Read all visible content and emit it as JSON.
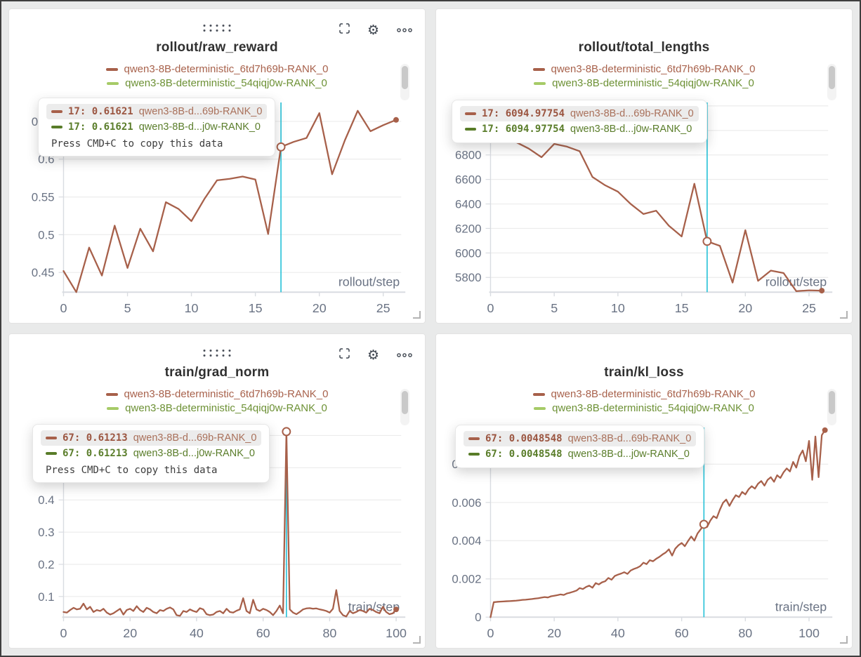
{
  "legend": {
    "series": [
      {
        "label": "qwen3-8B-deterministic_6td7h69b-RANK_0",
        "color": "#a7604a"
      },
      {
        "label": "qwen3-8B-deterministic_54qiqj0w-RANK_0",
        "color": "#a6cb67"
      }
    ]
  },
  "colors": {
    "line": "#a7604a",
    "green_light": "#a6cb67",
    "green_dark": "#587c28",
    "crosshair": "#2fc4d9",
    "axis_text": "#6a7384",
    "grid": "#ececec",
    "axis_line": "#d9dce1",
    "title": "#303030"
  },
  "chart_data": [
    {
      "type": "line",
      "title": "rollout/raw_reward",
      "xlabel": "rollout/step",
      "x_start": 0,
      "x_step": 1,
      "values": [
        0.452,
        0.424,
        0.483,
        0.446,
        0.512,
        0.456,
        0.508,
        0.478,
        0.543,
        0.534,
        0.518,
        0.547,
        0.572,
        0.574,
        0.577,
        0.573,
        0.501,
        0.61621,
        0.623,
        0.628,
        0.661,
        0.58,
        0.625,
        0.664,
        0.637,
        0.645,
        0.652
      ],
      "xlim": [
        0,
        26.4
      ],
      "ylim": [
        0.424,
        0.675
      ],
      "xticks": [
        0,
        5,
        10,
        15,
        20,
        25
      ],
      "xlabels": [
        "0",
        "5",
        "10",
        "15",
        "20",
        "25"
      ],
      "yticks": [
        0.45,
        0.5,
        0.55,
        0.6,
        0.65
      ],
      "ylabels": [
        "0.45",
        "0.5",
        "0.55",
        "0.6",
        "0.65"
      ],
      "crosshair_x": 17,
      "marker": {
        "x": 17,
        "y": 0.61621
      },
      "end_dot": true,
      "tooltip": {
        "rows": [
          {
            "num": "17: 0.61621",
            "run": "qwen3-8B-d...69b-RANK_0"
          },
          {
            "num": "17: 0.61621",
            "run": "qwen3-8B-d...j0w-RANK_0"
          }
        ],
        "footer": "Press CMD+C to copy this data"
      }
    },
    {
      "type": "line",
      "title": "rollout/total_lengths",
      "xlabel": "rollout/step",
      "x_start": 0,
      "x_step": 1,
      "values": [
        7150,
        7015,
        6905,
        6852,
        6781,
        6890,
        6868,
        6830,
        6620,
        6552,
        6500,
        6400,
        6318,
        6345,
        6222,
        6135,
        6565,
        6094.97754,
        6058,
        5758,
        6186,
        5772,
        5856,
        5836,
        5688,
        5695,
        5692
      ],
      "xlim": [
        0,
        26.5
      ],
      "ylim": [
        5680,
        7228
      ],
      "xticks": [
        0,
        5,
        10,
        15,
        20,
        25
      ],
      "xlabels": [
        "0",
        "5",
        "10",
        "15",
        "20",
        "25"
      ],
      "yticks": [
        5800,
        6000,
        6200,
        6400,
        6600,
        6800,
        7000,
        7200
      ],
      "ylabels": [
        "5800",
        "6000",
        "6200",
        "6400",
        "6600",
        "6800",
        "7000",
        "7200"
      ],
      "crosshair_x": 17,
      "marker": {
        "x": 17,
        "y": 6094.97754
      },
      "end_dot": true,
      "tooltip": {
        "rows": [
          {
            "num": "17: 6094.97754",
            "run": "qwen3-8B-d...69b-RANK_0"
          },
          {
            "num": "17: 6094.97754",
            "run": "qwen3-8B-d...j0w-RANK_0"
          }
        ],
        "footer": null
      }
    },
    {
      "type": "line",
      "title": "train/grad_norm",
      "xlabel": "train/step",
      "x_start": 0,
      "x_step": 1,
      "values": [
        0.052,
        0.05,
        0.058,
        0.065,
        0.06,
        0.062,
        0.078,
        0.06,
        0.068,
        0.052,
        0.058,
        0.055,
        0.062,
        0.05,
        0.044,
        0.048,
        0.055,
        0.062,
        0.044,
        0.058,
        0.062,
        0.055,
        0.07,
        0.058,
        0.052,
        0.065,
        0.06,
        0.052,
        0.048,
        0.058,
        0.055,
        0.062,
        0.066,
        0.06,
        0.042,
        0.04,
        0.055,
        0.052,
        0.06,
        0.055,
        0.052,
        0.064,
        0.06,
        0.045,
        0.042,
        0.044,
        0.052,
        0.055,
        0.048,
        0.062,
        0.052,
        0.05,
        0.056,
        0.06,
        0.095,
        0.055,
        0.048,
        0.09,
        0.06,
        0.055,
        0.062,
        0.058,
        0.052,
        0.042,
        0.055,
        0.072,
        0.048,
        0.61213,
        0.06,
        0.05,
        0.045,
        0.052,
        0.06,
        0.063,
        0.064,
        0.062,
        0.063,
        0.06,
        0.058,
        0.055,
        0.05,
        0.062,
        0.12,
        0.055,
        0.042,
        0.038,
        0.055,
        0.048,
        0.052,
        0.058,
        0.055,
        0.05,
        0.062,
        0.058,
        0.052,
        0.048,
        0.068,
        0.052,
        0.045,
        0.048,
        0.06
      ],
      "xlim": [
        0,
        101.5
      ],
      "ylim": [
        0.036,
        0.625
      ],
      "xticks": [
        0,
        20,
        40,
        60,
        80,
        100
      ],
      "xlabels": [
        "0",
        "20",
        "40",
        "60",
        "80",
        "100"
      ],
      "yticks": [
        0.1,
        0.2,
        0.3,
        0.4,
        0.5,
        0.6
      ],
      "ylabels": [
        "0.1",
        "0.2",
        "0.3",
        "0.4",
        "0.5",
        "0.6"
      ],
      "crosshair_x": 67,
      "marker": {
        "x": 67,
        "y": 0.61213
      },
      "end_dot": true,
      "tooltip": {
        "rows": [
          {
            "num": "67: 0.61213",
            "run": "qwen3-8B-d...69b-RANK_0"
          },
          {
            "num": "67: 0.61213",
            "run": "qwen3-8B-d...j0w-RANK_0"
          }
        ],
        "footer": "Press CMD+C to copy this data"
      }
    },
    {
      "type": "line",
      "title": "train/kl_loss",
      "xlabel": "train/step",
      "x_start": 0,
      "x_step": 1,
      "values": [
        0,
        0.00078,
        0.0008,
        0.00081,
        0.00082,
        0.00083,
        0.00084,
        0.00085,
        0.00086,
        0.00088,
        0.0009,
        0.00091,
        0.00093,
        0.00095,
        0.00097,
        0.00099,
        0.00102,
        0.00105,
        0.00103,
        0.00109,
        0.00112,
        0.00115,
        0.00119,
        0.00116,
        0.00124,
        0.00128,
        0.00133,
        0.00139,
        0.00152,
        0.00147,
        0.00158,
        0.00165,
        0.00154,
        0.00178,
        0.00171,
        0.00182,
        0.00188,
        0.00205,
        0.00196,
        0.00215,
        0.00222,
        0.00228,
        0.00235,
        0.00226,
        0.00244,
        0.00252,
        0.00258,
        0.00267,
        0.00285,
        0.00277,
        0.00298,
        0.00292,
        0.00305,
        0.00315,
        0.00328,
        0.00338,
        0.00355,
        0.00322,
        0.00358,
        0.00376,
        0.00388,
        0.00371,
        0.00398,
        0.00422,
        0.004,
        0.00438,
        0.0046,
        0.0048548,
        0.00472,
        0.00505,
        0.00528,
        0.00518,
        0.00562,
        0.00598,
        0.00615,
        0.00582,
        0.00612,
        0.00638,
        0.00628,
        0.00655,
        0.00642,
        0.00668,
        0.00685,
        0.00672,
        0.00698,
        0.00712,
        0.00688,
        0.00718,
        0.00732,
        0.00708,
        0.00742,
        0.00728,
        0.00758,
        0.00778,
        0.00762,
        0.00812,
        0.00782,
        0.00842,
        0.00872,
        0.00815,
        0.00922,
        0.00718,
        0.00945,
        0.00732,
        0.00952,
        0.00978
      ],
      "xlim": [
        0,
        106
      ],
      "ylim": [
        0,
        0.00992
      ],
      "xticks": [
        0,
        20,
        40,
        60,
        80,
        100
      ],
      "xlabels": [
        "0",
        "20",
        "40",
        "60",
        "80",
        "100"
      ],
      "yticks": [
        0,
        0.002,
        0.004,
        0.006,
        0.008
      ],
      "ylabels": [
        "0",
        "0.002",
        "0.004",
        "0.006",
        "0.008"
      ],
      "crosshair_x": 67,
      "marker": {
        "x": 67,
        "y": 0.0048548
      },
      "end_dot": true,
      "tooltip": {
        "rows": [
          {
            "num": "67: 0.0048548",
            "run": "qwen3-8B-d...69b-RANK_0"
          },
          {
            "num": "67: 0.0048548",
            "run": "qwen3-8B-d...j0w-RANK_0"
          }
        ],
        "footer": null
      }
    }
  ]
}
